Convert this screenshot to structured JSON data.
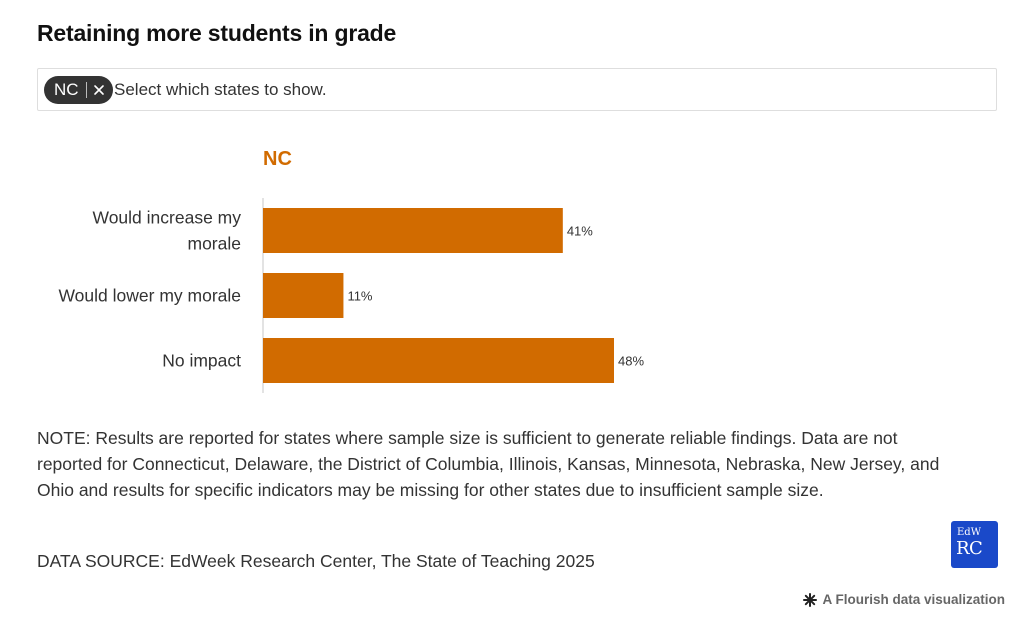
{
  "title": "Retaining more students in grade",
  "filter": {
    "chip_label": "NC",
    "placeholder": "Select which states to show."
  },
  "chart_data": {
    "type": "bar",
    "orientation": "horizontal",
    "panel_title": "NC",
    "categories": [
      [
        "Would increase my",
        "morale"
      ],
      [
        "Would lower my morale"
      ],
      [
        "No impact"
      ]
    ],
    "values": [
      41,
      11,
      48
    ],
    "value_labels": [
      "41%",
      "11%",
      "48%"
    ],
    "xlim": [
      0,
      48
    ],
    "bar_color": "#d16b00",
    "title_color": "#d16b00"
  },
  "note": "NOTE: Results are reported for states where sample size is sufficient to generate reliable findings. Data are not reported for Connecticut, Delaware, the District of Columbia, Illinois, Kansas, Minnesota, Nebraska, New Jersey, and Ohio and results for specific indicators may be missing for other states due to insufficient sample size.",
  "source": "DATA SOURCE: EdWeek Research Center, The State of Teaching 2025",
  "logo": {
    "top": "EdW",
    "bottom": "RC"
  },
  "credit": {
    "icon": "flourish-star-icon",
    "text": "A Flourish data visualization"
  }
}
